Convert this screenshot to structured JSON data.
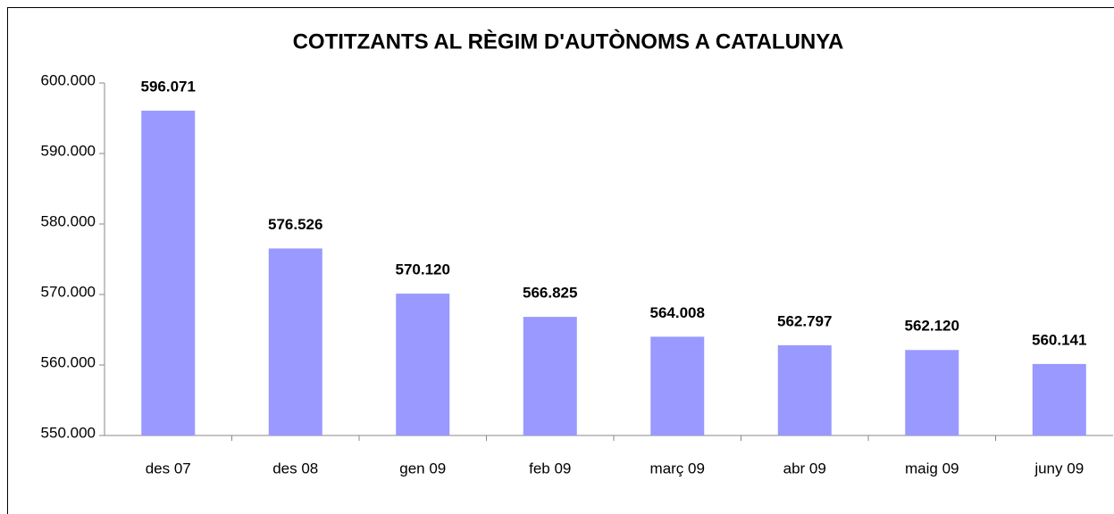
{
  "chart_data": {
    "type": "bar",
    "title": "COTITZANTS AL RÈGIM D'AUTÒNOMS A CATALUNYA",
    "categories": [
      "des 07",
      "des 08",
      "gen 09",
      "feb 09",
      "març 09",
      "abr 09",
      "maig 09",
      "juny 09"
    ],
    "values": [
      596071,
      576526,
      570120,
      566825,
      564008,
      562797,
      562120,
      560141
    ],
    "value_labels": [
      "596.071",
      "576.526",
      "570.120",
      "566.825",
      "564.008",
      "562.797",
      "562.120",
      "560.141"
    ],
    "color": "#9999ff",
    "ylim": [
      550000,
      600000
    ],
    "yticks": [
      {
        "value": 550000,
        "label": "550.000"
      },
      {
        "value": 560000,
        "label": "560.000"
      },
      {
        "value": 570000,
        "label": "570.000"
      },
      {
        "value": 580000,
        "label": "580.000"
      },
      {
        "value": 590000,
        "label": "590.000"
      },
      {
        "value": 600000,
        "label": "600.000"
      }
    ],
    "grid": false
  }
}
